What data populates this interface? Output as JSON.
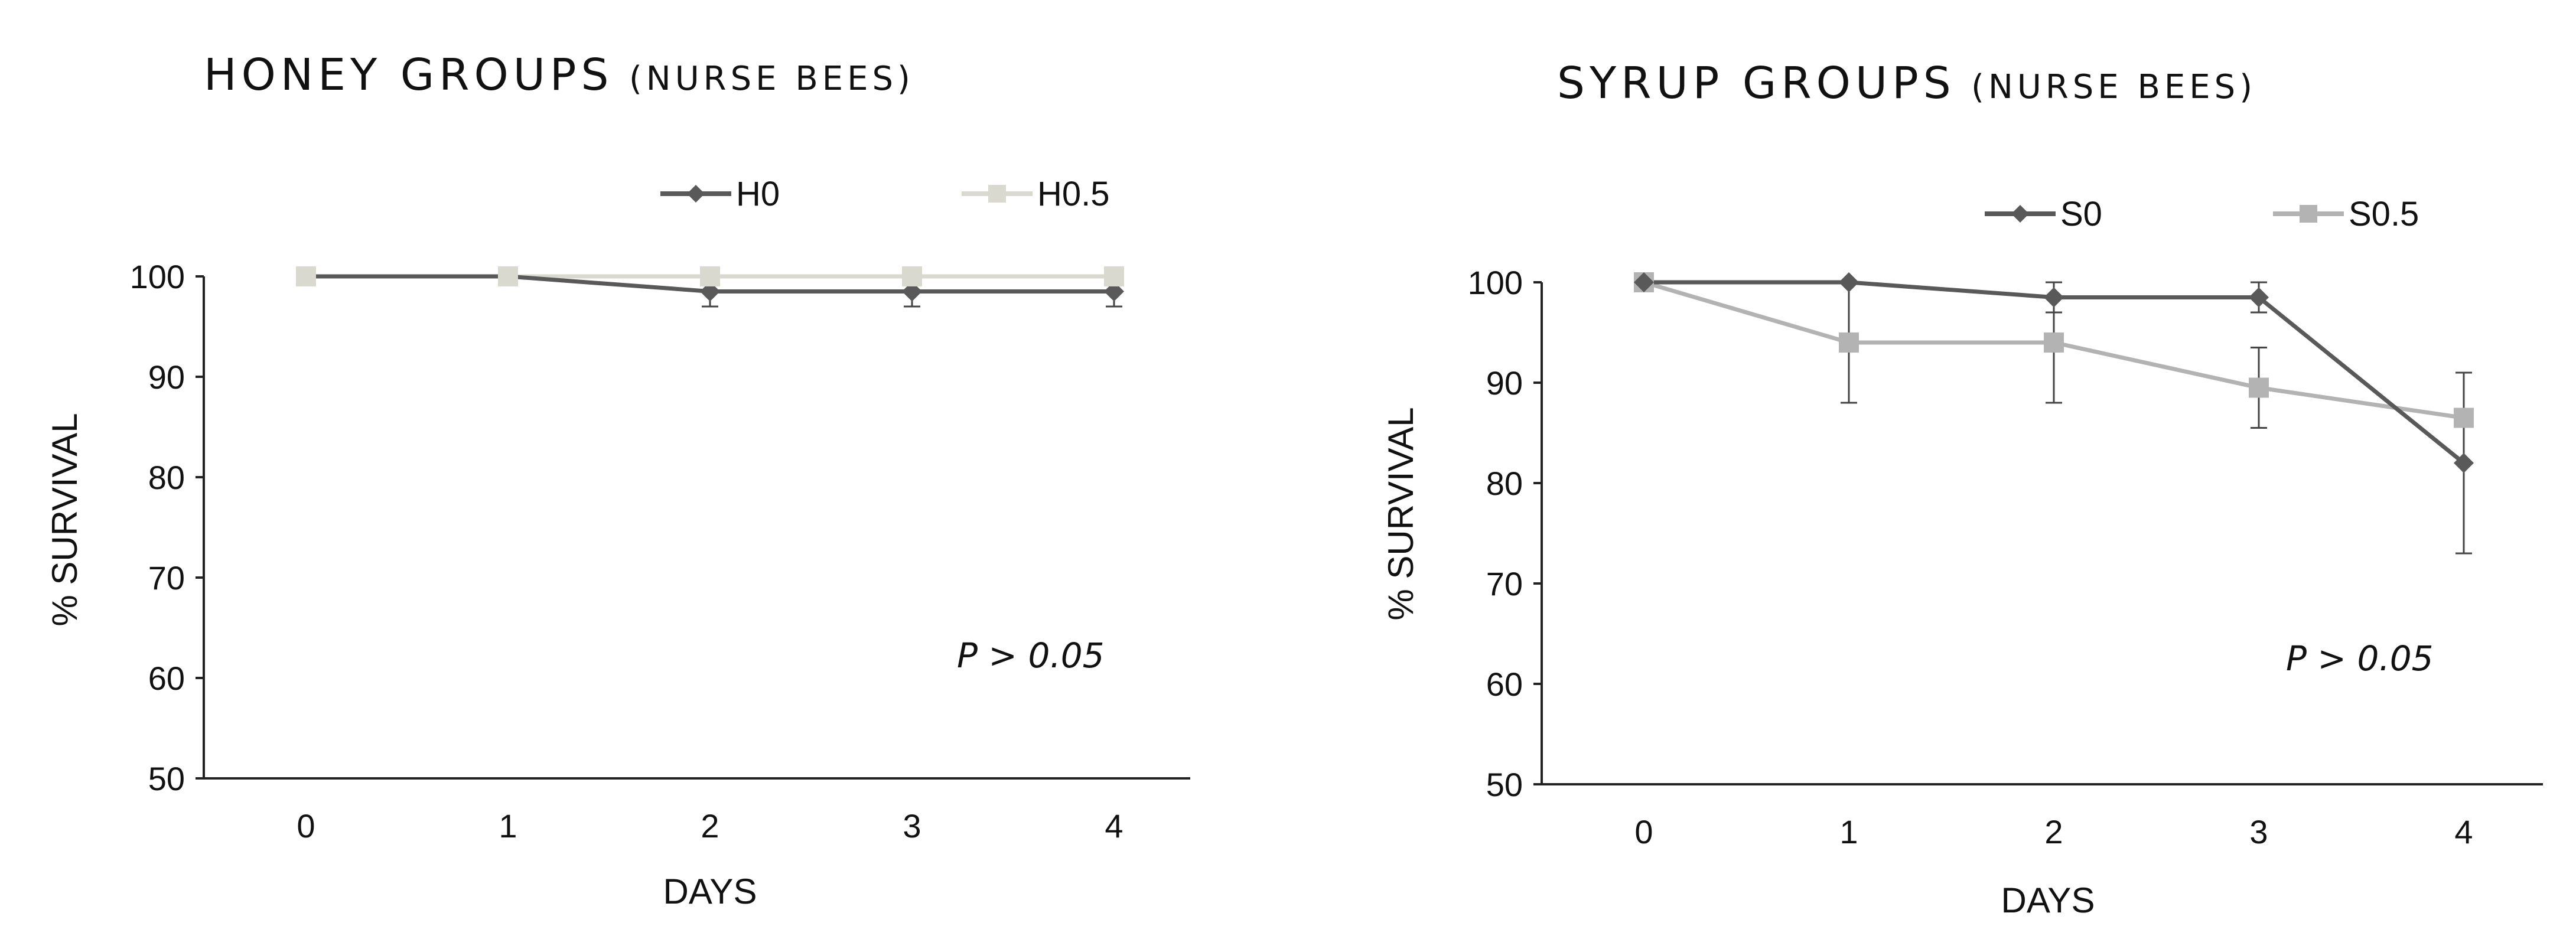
{
  "chart_data": [
    {
      "type": "line",
      "title": "HONEY GROUPS",
      "subtitle": "(NURSE BEES)",
      "xlabel": "DAYS",
      "ylabel": "% SURVIVAL",
      "categories": [
        "0",
        "1",
        "2",
        "3",
        "4"
      ],
      "ylim": [
        50,
        100
      ],
      "yticks": [
        50,
        60,
        70,
        80,
        90,
        100
      ],
      "grid": false,
      "legend_position": "top",
      "annotation": "P > 0.05",
      "series": [
        {
          "name": "H0",
          "color": "#595959",
          "marker": "diamond",
          "values": [
            100,
            100,
            98.5,
            98.5,
            98.5
          ],
          "error": [
            0,
            0,
            1.5,
            1.5,
            1.5
          ]
        },
        {
          "name": "H0.5",
          "color": "#d9d9cf",
          "marker": "square",
          "values": [
            100,
            100,
            100,
            100,
            100
          ],
          "error": [
            0,
            0,
            0,
            0,
            0
          ]
        }
      ]
    },
    {
      "type": "line",
      "title": "SYRUP GROUPS",
      "subtitle": "(NURSE BEES)",
      "xlabel": "DAYS",
      "ylabel": "% SURVIVAL",
      "categories": [
        "0",
        "1",
        "2",
        "3",
        "4"
      ],
      "ylim": [
        50,
        100
      ],
      "yticks": [
        50,
        60,
        70,
        80,
        90,
        100
      ],
      "grid": false,
      "legend_position": "top",
      "annotation": "P > 0.05",
      "series": [
        {
          "name": "S0",
          "color": "#595959",
          "marker": "diamond",
          "values": [
            100,
            100,
            98.5,
            98.5,
            82
          ],
          "error": [
            0,
            0,
            1.5,
            1.5,
            9
          ]
        },
        {
          "name": "S0.5",
          "color": "#b3b3b3",
          "marker": "square",
          "values": [
            100,
            94,
            94,
            89.5,
            86.5
          ],
          "error": [
            0,
            6,
            6,
            4,
            0
          ]
        }
      ]
    }
  ]
}
